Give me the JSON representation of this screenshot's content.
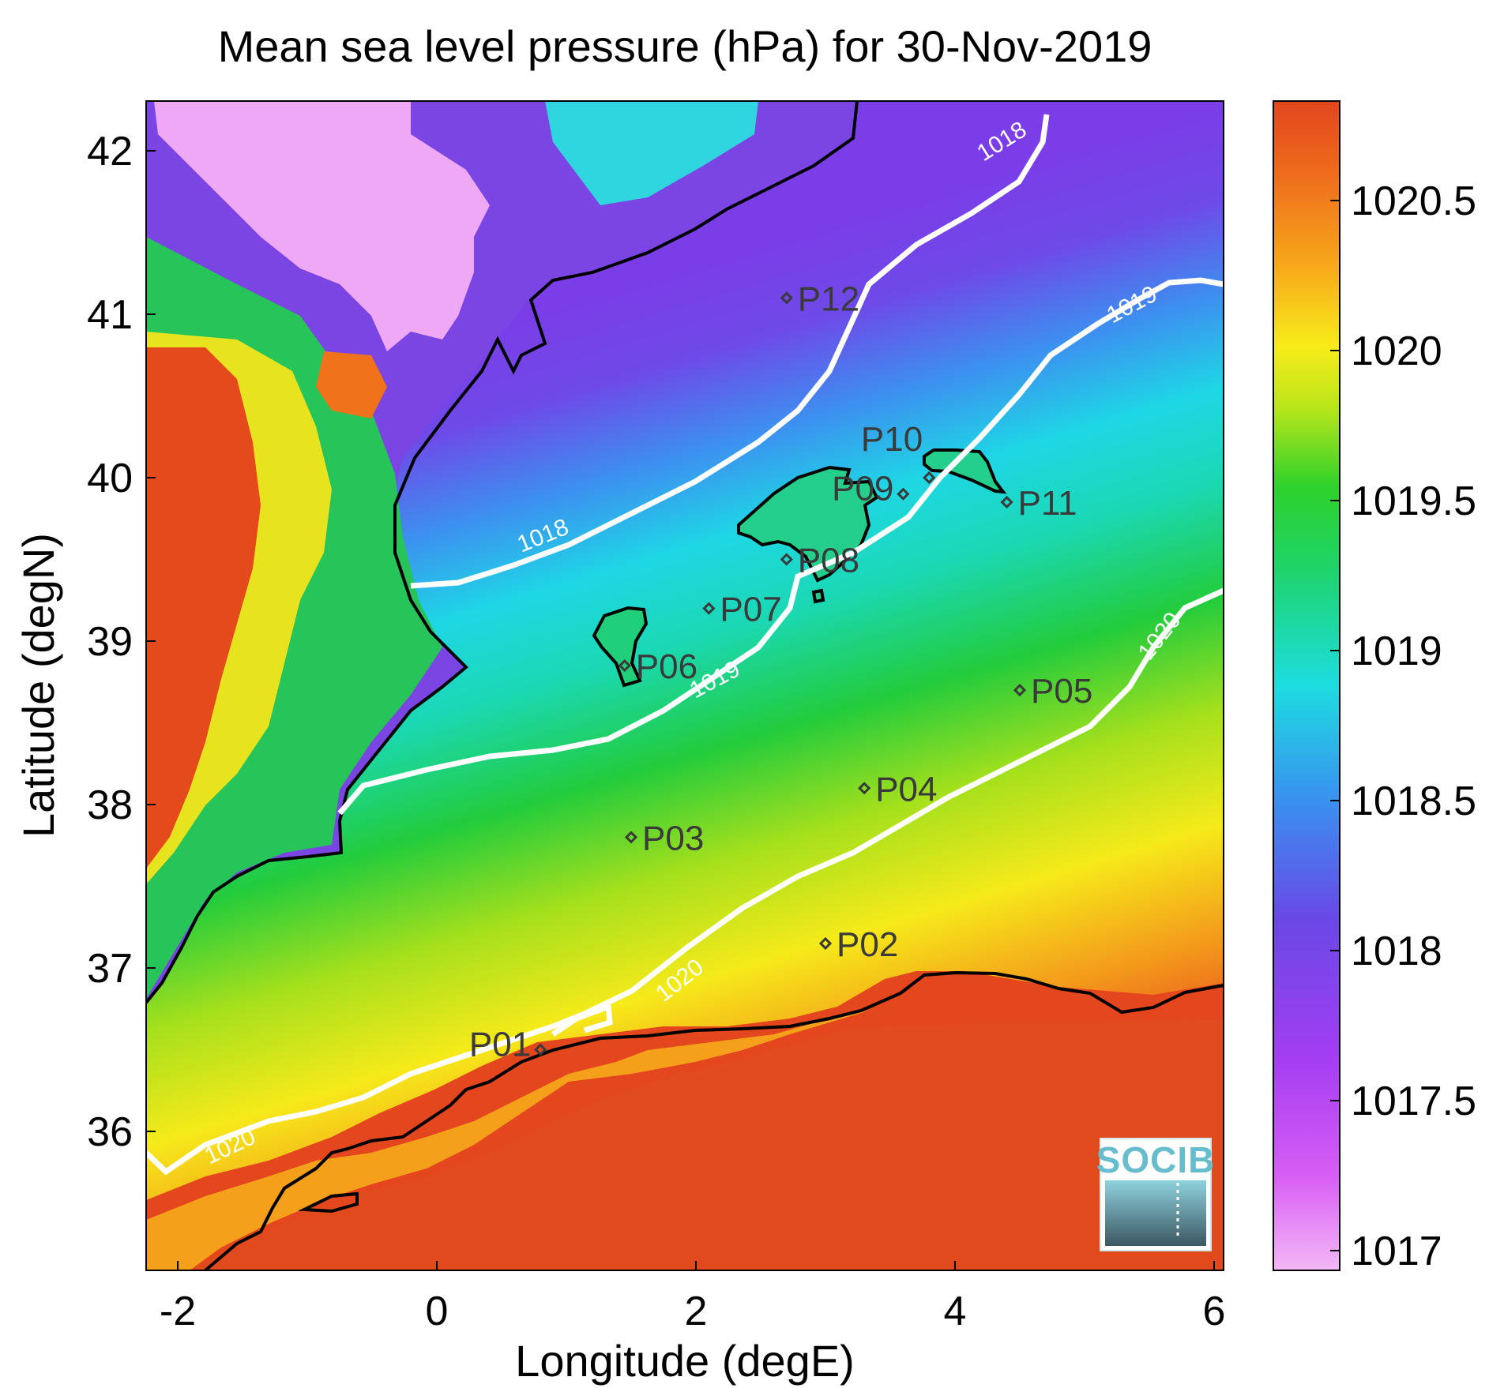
{
  "title": "Mean sea level pressure (hPa) for 30-Nov-2019",
  "xaxis": {
    "label": "Longitude (degE)",
    "ticks": [
      "-2",
      "0",
      "2",
      "4",
      "6"
    ]
  },
  "yaxis": {
    "label": "Latitude (degN)",
    "ticks": [
      "36",
      "37",
      "38",
      "39",
      "40",
      "41",
      "42"
    ]
  },
  "colorbar": {
    "ticks": [
      "1017",
      "1017.5",
      "1018",
      "1018.5",
      "1019",
      "1019.5",
      "1020",
      "1020.5"
    ],
    "colors": [
      "#efa6f3",
      "#c33ff5",
      "#7a3be8",
      "#3f8ef0",
      "#19ddde",
      "#19d14a",
      "#cde61a",
      "#f8e01a",
      "#f7a11a",
      "#e4461d"
    ]
  },
  "contour_labels": [
    "1018",
    "1018",
    "1019",
    "1019",
    "1020",
    "1020",
    "1020"
  ],
  "stations": [
    {
      "id": "P01",
      "lon": 0.8,
      "lat": 36.5
    },
    {
      "id": "P02",
      "lon": 3.0,
      "lat": 37.15
    },
    {
      "id": "P03",
      "lon": 1.5,
      "lat": 37.8
    },
    {
      "id": "P04",
      "lon": 3.3,
      "lat": 38.1
    },
    {
      "id": "P05",
      "lon": 4.5,
      "lat": 38.7
    },
    {
      "id": "P06",
      "lon": 1.45,
      "lat": 38.85
    },
    {
      "id": "P07",
      "lon": 2.1,
      "lat": 39.2
    },
    {
      "id": "P08",
      "lon": 2.7,
      "lat": 39.5
    },
    {
      "id": "P09",
      "lon": 3.6,
      "lat": 39.9
    },
    {
      "id": "P10",
      "lon": 3.8,
      "lat": 40.0
    },
    {
      "id": "P11",
      "lon": 4.4,
      "lat": 39.85
    },
    {
      "id": "P12",
      "lon": 2.7,
      "lat": 41.1
    }
  ],
  "logo": {
    "text": "SOCIB"
  }
}
